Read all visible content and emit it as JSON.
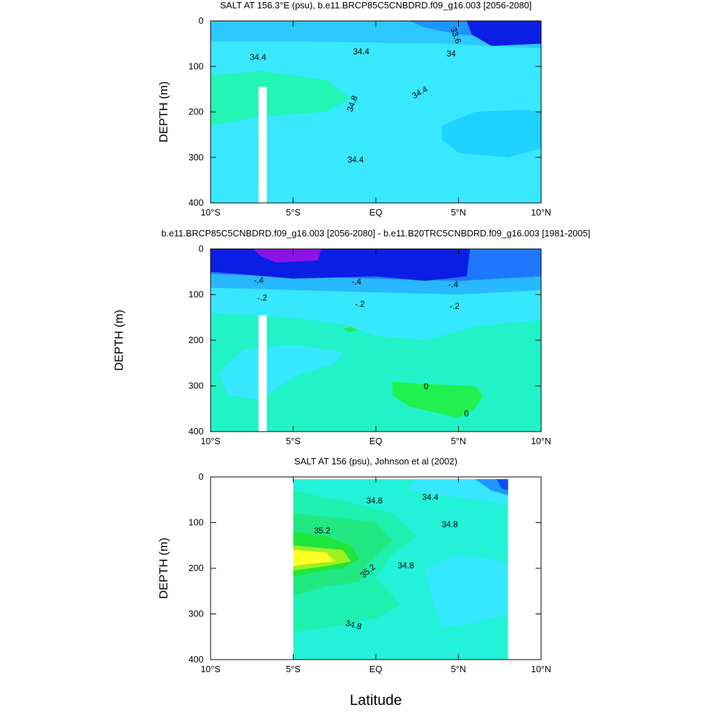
{
  "chart_data": [
    {
      "type": "contour",
      "title": "SALT AT 156.3°E (psu), b.e11.BRCP85C5CNBDRD.f09_g16.003 [2056-2080]",
      "ylabel": "DEPTH (m)",
      "xlim": [
        -10,
        10
      ],
      "xticks": [
        {
          "value": -10,
          "label": "10°S"
        },
        {
          "value": -5,
          "label": "5°S"
        },
        {
          "value": 0,
          "label": "EQ"
        },
        {
          "value": 5,
          "label": "5°N"
        },
        {
          "value": 10,
          "label": "10°N"
        }
      ],
      "ylim": [
        0,
        400
      ],
      "yticks": [
        0,
        100,
        200,
        300,
        400
      ],
      "y_reversed": true,
      "contour_labels": [
        33.6,
        34,
        34.4,
        34.4,
        34.4,
        34.4,
        34.8
      ]
    },
    {
      "type": "contour",
      "title": "b.e11.BRCP85C5CNBDRD.f09_g16.003 [2056-2080] - b.e11.B20TRC5CNBDRD.f09_g16.003 [1981-2005]",
      "ylabel": "DEPTH (m)",
      "xlim": [
        -10,
        10
      ],
      "xticks": [
        {
          "value": -10,
          "label": "10°S"
        },
        {
          "value": -5,
          "label": "5°S"
        },
        {
          "value": 0,
          "label": "EQ"
        },
        {
          "value": 5,
          "label": "5°N"
        },
        {
          "value": 10,
          "label": "10°N"
        }
      ],
      "ylim": [
        0,
        400
      ],
      "yticks": [
        0,
        100,
        200,
        300,
        400
      ],
      "y_reversed": true,
      "contour_labels": [
        {
          "value": -0.4,
          "label": "-.4"
        },
        {
          "value": -0.4,
          "label": "-.4"
        },
        {
          "value": -0.4,
          "label": "-.4"
        },
        {
          "value": -0.2,
          "label": "-.2"
        },
        {
          "value": -0.2,
          "label": "-.2"
        },
        {
          "value": -0.2,
          "label": "-.2"
        },
        0,
        0
      ]
    },
    {
      "type": "contour",
      "title": "SALT AT 156 (psu), Johnson et al (2002)",
      "ylabel": "DEPTH (m)",
      "xlabel": "Latitude",
      "xlim": [
        -10,
        10
      ],
      "xticks": [
        {
          "value": -10,
          "label": "10°S"
        },
        {
          "value": -5,
          "label": "5°S"
        },
        {
          "value": 0,
          "label": "EQ"
        },
        {
          "value": 5,
          "label": "5°N"
        },
        {
          "value": 10,
          "label": "10°N"
        }
      ],
      "ylim": [
        0,
        400
      ],
      "yticks": [
        0,
        100,
        200,
        300,
        400
      ],
      "y_reversed": true,
      "contour_labels": [
        34.8,
        34.4,
        34.8,
        35.2,
        35.2,
        34.8,
        34.8
      ]
    }
  ]
}
